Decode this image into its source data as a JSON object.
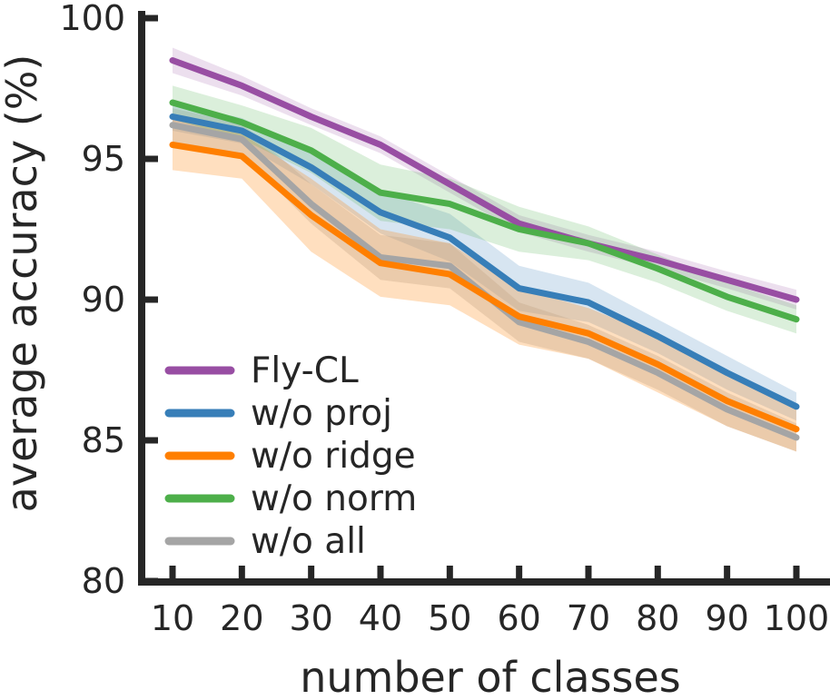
{
  "chart_data": {
    "type": "line",
    "title": "",
    "xlabel": "number of classes",
    "ylabel": "average accuracy (%)",
    "x": [
      10,
      20,
      30,
      40,
      50,
      60,
      70,
      80,
      90,
      100
    ],
    "xticks": [
      "10",
      "20",
      "30",
      "40",
      "50",
      "60",
      "70",
      "80",
      "90",
      "100"
    ],
    "yticks": [
      "100",
      "95",
      "90",
      "85",
      "80"
    ],
    "ytick_values": [
      100,
      95,
      90,
      85,
      80
    ],
    "xlim": [
      10,
      100
    ],
    "ylim": [
      80,
      100
    ],
    "grid": false,
    "legend_position": "lower left",
    "axis_color": "#262626",
    "text_color": "#262626",
    "series": [
      {
        "name": "Fly-CL",
        "color": "#984ea3",
        "band_alpha": 0.18,
        "values": [
          98.5,
          97.6,
          96.5,
          95.5,
          94.1,
          92.7,
          92.0,
          91.4,
          90.7,
          90.0
        ],
        "band": [
          0.45,
          0.35,
          0.3,
          0.3,
          0.3,
          0.3,
          0.3,
          0.3,
          0.3,
          0.35
        ]
      },
      {
        "name": "w/o proj",
        "color": "#377eb8",
        "band_alpha": 0.2,
        "values": [
          96.5,
          96.0,
          94.7,
          93.1,
          92.2,
          90.4,
          89.9,
          88.7,
          87.4,
          86.2
        ],
        "band": [
          0.5,
          0.45,
          0.6,
          0.75,
          0.85,
          0.8,
          0.7,
          0.6,
          0.6,
          0.5
        ]
      },
      {
        "name": "w/o ridge",
        "color": "#ff7f00",
        "band_alpha": 0.25,
        "values": [
          95.5,
          95.1,
          93.0,
          91.3,
          90.9,
          89.4,
          88.8,
          87.7,
          86.4,
          85.4
        ],
        "band": [
          0.9,
          0.8,
          1.3,
          1.2,
          1.1,
          1.0,
          0.9,
          1.0,
          0.9,
          0.8
        ]
      },
      {
        "name": "w/o norm",
        "color": "#4daf4a",
        "band_alpha": 0.2,
        "values": [
          97.0,
          96.3,
          95.3,
          93.8,
          93.4,
          92.5,
          92.0,
          91.1,
          90.1,
          89.3
        ],
        "band": [
          0.6,
          0.6,
          0.8,
          1.0,
          0.9,
          0.8,
          0.6,
          0.5,
          0.5,
          0.5
        ]
      },
      {
        "name": "w/o all",
        "color": "#a5a5a5",
        "band_alpha": 0.3,
        "values": [
          96.2,
          95.7,
          93.4,
          91.5,
          91.2,
          89.2,
          88.5,
          87.4,
          86.1,
          85.1
        ],
        "band": [
          0.6,
          0.55,
          0.7,
          0.8,
          0.8,
          0.7,
          0.6,
          0.6,
          0.6,
          0.5
        ]
      }
    ]
  }
}
